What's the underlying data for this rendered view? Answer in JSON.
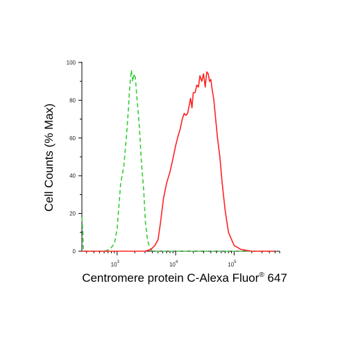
{
  "chart_data": {
    "type": "line",
    "title": "",
    "xlabel": "Centromere protein C-Alexa Fluor",
    "xlabel_sup": "®",
    "xlabel_suffix": " 647",
    "ylabel": "Cell Counts (% Max)",
    "xscale": "log",
    "xlim": [
      250,
      600000
    ],
    "ylim": [
      0,
      100
    ],
    "yticks": [
      0,
      20,
      40,
      60,
      80,
      100
    ],
    "xtick_labels": [
      {
        "value": 1000,
        "base": "10",
        "exp": "3"
      },
      {
        "value": 10000,
        "base": "10",
        "exp": "4"
      },
      {
        "value": 100000,
        "base": "10",
        "exp": "5"
      }
    ],
    "grid": false,
    "series": [
      {
        "color": "#33cc33",
        "dash": "dashed",
        "x": [
          250,
          260,
          265,
          280,
          320,
          420,
          600,
          750,
          900,
          1000,
          1150,
          1300,
          1450,
          1560,
          1650,
          1750,
          1850,
          1950,
          2050,
          2200,
          2400,
          2600,
          2850,
          3050,
          3300,
          3600,
          4000,
          4500,
          6000,
          10000,
          100000,
          500000
        ],
        "y": [
          18,
          10,
          0,
          0,
          0,
          0,
          0,
          1,
          4,
          12,
          36,
          45,
          62,
          75,
          88,
          96,
          90,
          94,
          92,
          80,
          66,
          47,
          32,
          15,
          6,
          2,
          0,
          0,
          0,
          0,
          0,
          0
        ]
      },
      {
        "color": "#ff2020",
        "dash": "solid",
        "x": [
          250,
          1000,
          2000,
          3000,
          3800,
          4400,
          5000,
          5500,
          6200,
          7000,
          8000,
          9000,
          10000,
          11000,
          12000,
          13000,
          14000,
          15000,
          16000,
          17000,
          18000,
          19000,
          20000,
          21500,
          23000,
          24500,
          26000,
          28000,
          30000,
          32000,
          34000,
          36000,
          38000,
          40000,
          42000,
          45000,
          48000,
          52000,
          57000,
          62000,
          70000,
          80000,
          100000,
          130000,
          200000,
          500000
        ],
        "y": [
          0,
          0,
          0,
          0,
          1,
          3,
          6,
          15,
          28,
          36,
          42,
          49,
          56,
          61,
          65,
          70,
          73,
          72,
          73,
          77,
          81,
          76,
          84,
          84,
          88,
          87,
          93,
          90,
          94,
          87,
          95,
          94,
          90,
          91,
          86,
          80,
          71,
          60,
          50,
          37,
          22,
          10,
          3,
          1,
          0,
          0
        ]
      }
    ]
  }
}
